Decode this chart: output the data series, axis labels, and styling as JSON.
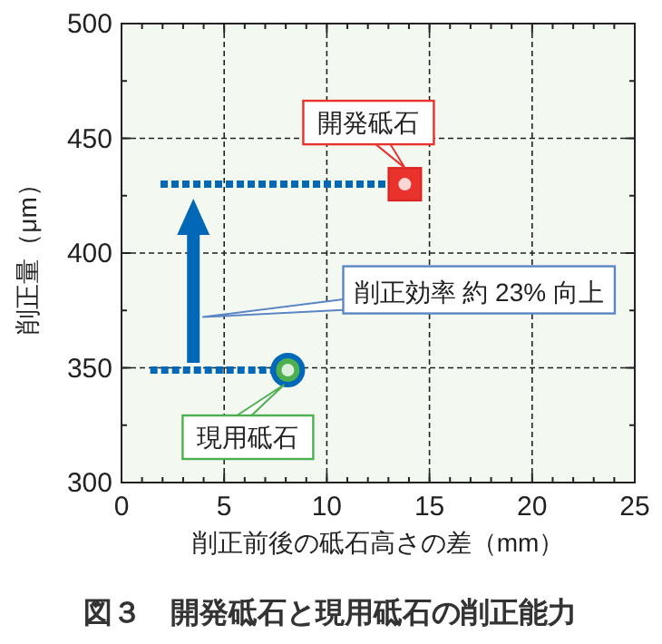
{
  "chart_data": {
    "type": "scatter",
    "ylabel": "削正量（μm）",
    "xlabel": "削正前後の砥石高さの差（mm）",
    "xlim": [
      0,
      25
    ],
    "ylim": [
      300,
      500
    ],
    "xticks": [
      0,
      {
        "value": 1,
        "label": null
      },
      {
        "value": 2,
        "label": null
      },
      {
        "value": 3,
        "label": null
      },
      {
        "value": 4,
        "label": null
      },
      5,
      {
        "value": 6,
        "label": null
      },
      {
        "value": 7,
        "label": null
      },
      {
        "value": 8,
        "label": null
      },
      {
        "value": 9,
        "label": null
      },
      10,
      {
        "value": 11,
        "label": null
      },
      {
        "value": 12,
        "label": null
      },
      {
        "value": 13,
        "label": null
      },
      {
        "value": 14,
        "label": null
      },
      15,
      {
        "value": 16,
        "label": null
      },
      {
        "value": 17,
        "label": null
      },
      {
        "value": 18,
        "label": null
      },
      {
        "value": 19,
        "label": null
      },
      20,
      {
        "value": 21,
        "label": null
      },
      {
        "value": 22,
        "label": null
      },
      {
        "value": 23,
        "label": null
      },
      {
        "value": 24,
        "label": null
      },
      25
    ],
    "yticks": [
      300,
      {
        "value": 325,
        "label": null
      },
      350,
      {
        "value": 375,
        "label": null
      },
      400,
      {
        "value": 425,
        "label": null
      },
      450,
      {
        "value": 475,
        "label": null
      },
      500
    ],
    "grid": true,
    "series": [
      {
        "type": "line",
        "line_style": "dotted",
        "color": "#0068b7",
        "x": [
          1.9,
          13.8
        ],
        "values": [
          430,
          430
        ]
      },
      {
        "type": "line",
        "line_style": "dotted",
        "color": "#0068b7",
        "x": [
          1.4,
          8.1
        ],
        "values": [
          349,
          349
        ]
      },
      {
        "name": "開発砥石",
        "marker": "square",
        "color": "#e8322b",
        "x": [
          13.8
        ],
        "values": [
          430
        ]
      },
      {
        "name": "現用砥石",
        "marker": "circle",
        "color": "#4caf50",
        "x": [
          8.1
        ],
        "values": [
          349
        ]
      }
    ],
    "annotations": [
      "削正効率 約 23% 向上",
      "図３　開発砥石と現用砥石の削正能力"
    ]
  }
}
